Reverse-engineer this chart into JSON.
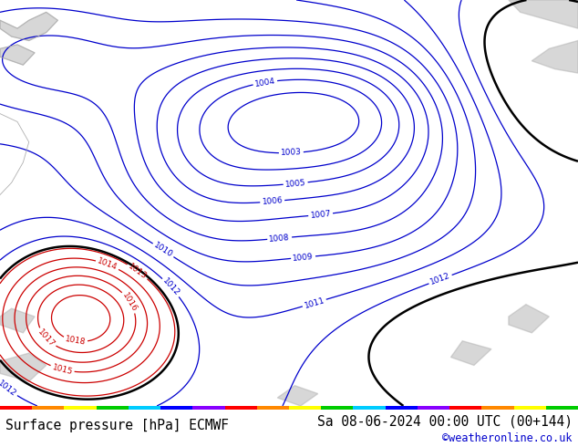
{
  "title_left": "Surface pressure [hPa] ECMWF",
  "title_right": "Sa 08-06-2024 00:00 UTC (00+144)",
  "copyright": "©weatheronline.co.uk",
  "bg_color": "#b8e890",
  "text_color_bottom": "#000000",
  "copyright_color": "#0000cc",
  "blue_color": "#0000cc",
  "red_color": "#cc0000",
  "black_color": "#000000",
  "gray_land": "#b0b0b0",
  "font_size_title": 10.5,
  "font_size_label": 6.5
}
